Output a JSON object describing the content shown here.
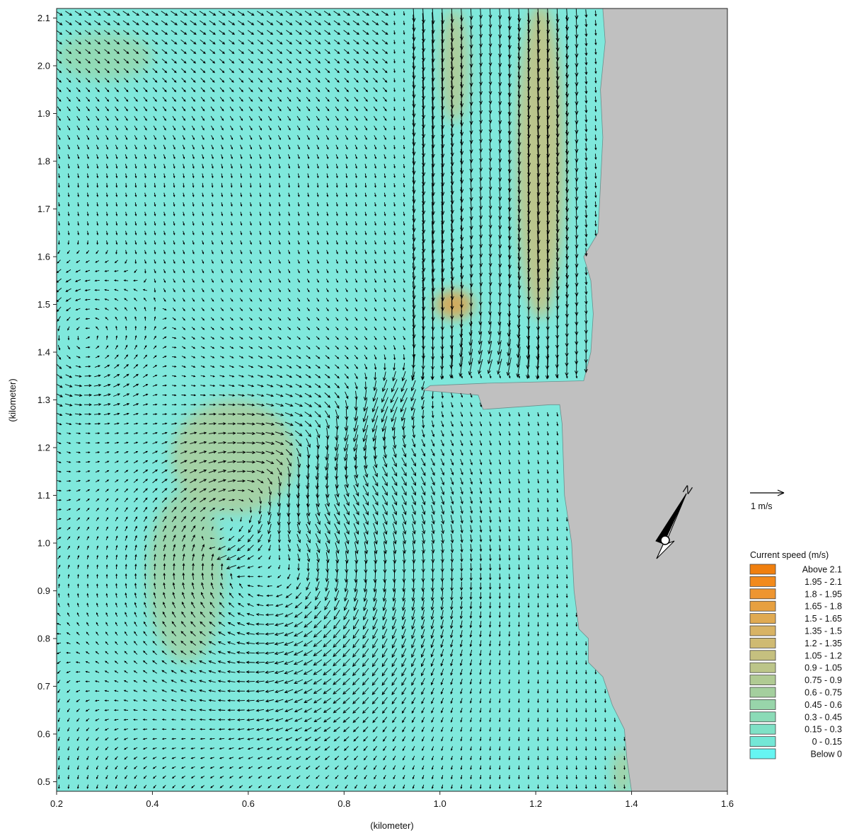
{
  "chart_data": {
    "type": "vector-field",
    "xlabel": "(kilometer)",
    "ylabel": "(kilometer)",
    "xlim": [
      0.2,
      1.6
    ],
    "ylim": [
      0.48,
      2.12
    ],
    "xticks": [
      "0.2",
      "0.4",
      "0.6",
      "0.8",
      "1.0",
      "1.2",
      "1.4",
      "1.6"
    ],
    "yticks": [
      "0.5",
      "0.6",
      "0.7",
      "0.8",
      "0.9",
      "1.0",
      "1.1",
      "1.2",
      "1.3",
      "1.4",
      "1.5",
      "1.6",
      "1.7",
      "1.8",
      "1.9",
      "2.0",
      "2.1"
    ],
    "scale_vector": {
      "label": "1 m/s",
      "value": 1
    },
    "north_arrow": {
      "label": "N"
    },
    "legend": {
      "title": "Current speed (m/s)",
      "position": "right",
      "entries": [
        {
          "label": "Above   2.1",
          "color": "#f07f0e"
        },
        {
          "label": "1.95 -  2.1",
          "color": "#f28a1c"
        },
        {
          "label": "1.8 - 1.95",
          "color": "#ee9530"
        },
        {
          "label": "1.65 -  1.8",
          "color": "#e7a040"
        },
        {
          "label": "1.5 - 1.65",
          "color": "#e0aa52"
        },
        {
          "label": "1.35 -  1.5",
          "color": "#d8b364"
        },
        {
          "label": "1.2 - 1.35",
          "color": "#cfba72"
        },
        {
          "label": "1.05 -  1.2",
          "color": "#c5c07f"
        },
        {
          "label": "0.9 - 1.05",
          "color": "#bcc589"
        },
        {
          "label": "0.75 -  0.9",
          "color": "#b0ca93"
        },
        {
          "label": "0.6 - 0.75",
          "color": "#a4cf9e"
        },
        {
          "label": "0.45 -  0.6",
          "color": "#98d5aa"
        },
        {
          "label": "0.3 - 0.45",
          "color": "#8bdbb7"
        },
        {
          "label": "0.15 -  0.3",
          "color": "#7fe1c6"
        },
        {
          "label": "0 - 0.15",
          "color": "#74e7d6"
        },
        {
          "label": "Below     0",
          "color": "#66f5f2"
        }
      ]
    },
    "colors": {
      "water": "#7fe8dc",
      "land": "#c0c0c0",
      "arrow": "#000000"
    },
    "land_outline": [
      [
        1.34,
        2.12
      ],
      [
        1.345,
        2.05
      ],
      [
        1.335,
        1.95
      ],
      [
        1.34,
        1.85
      ],
      [
        1.335,
        1.75
      ],
      [
        1.33,
        1.65
      ],
      [
        1.3,
        1.6
      ],
      [
        1.315,
        1.55
      ],
      [
        1.32,
        1.48
      ],
      [
        1.315,
        1.4
      ],
      [
        1.3,
        1.34
      ],
      [
        1.1,
        1.335
      ],
      [
        0.98,
        1.33
      ],
      [
        0.965,
        1.32
      ],
      [
        1.08,
        1.31
      ],
      [
        1.09,
        1.28
      ],
      [
        1.23,
        1.29
      ],
      [
        1.25,
        1.29
      ],
      [
        1.255,
        1.25
      ],
      [
        1.26,
        1.1
      ],
      [
        1.275,
        1.0
      ],
      [
        1.28,
        0.9
      ],
      [
        1.29,
        0.82
      ],
      [
        1.31,
        0.8
      ],
      [
        1.31,
        0.75
      ],
      [
        1.34,
        0.72
      ],
      [
        1.36,
        0.66
      ],
      [
        1.385,
        0.61
      ],
      [
        1.39,
        0.55
      ],
      [
        1.4,
        0.48
      ],
      [
        1.6,
        0.48
      ],
      [
        1.6,
        2.12
      ]
    ],
    "high_speed_zones": [
      {
        "x": 1.21,
        "y": 1.8,
        "rx": 0.05,
        "ry": 0.33,
        "speed": 1.2
      },
      {
        "x": 1.03,
        "y": 2.0,
        "rx": 0.03,
        "ry": 0.12,
        "speed": 1.0
      },
      {
        "x": 1.03,
        "y": 1.5,
        "rx": 0.04,
        "ry": 0.03,
        "speed": 1.8
      },
      {
        "x": 0.57,
        "y": 1.18,
        "rx": 0.13,
        "ry": 0.12,
        "speed": 0.8
      },
      {
        "x": 0.47,
        "y": 0.93,
        "rx": 0.08,
        "ry": 0.18,
        "speed": 0.7
      },
      {
        "x": 0.3,
        "y": 2.02,
        "rx": 0.1,
        "ry": 0.05,
        "speed": 0.45
      },
      {
        "x": 1.38,
        "y": 0.52,
        "rx": 0.02,
        "ry": 0.05,
        "speed": 0.8
      }
    ],
    "flow_features": {
      "eddy_center": [
        0.67,
        0.95
      ],
      "jet_origin": [
        0.95,
        1.34
      ],
      "jet_direction": "south-west",
      "inflow_channels": [
        0.99,
        1.21
      ],
      "reverse_eddy_center": [
        0.24,
        1.42
      ]
    }
  }
}
